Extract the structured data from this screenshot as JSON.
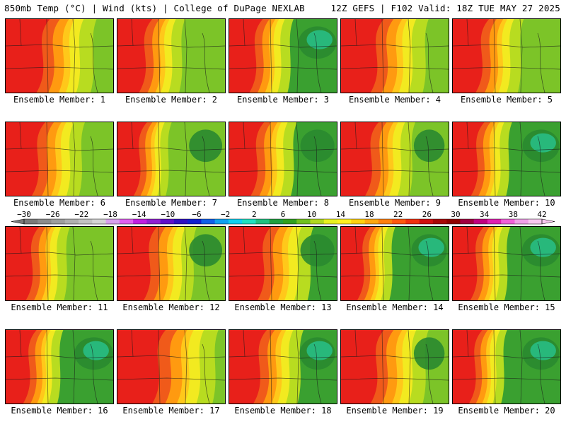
{
  "header": {
    "left": "850mb Temp (°C) | Wind (kts) | College of DuPage NEXLAB",
    "right": "12Z GEFS | F102 Valid: 18Z TUE MAY 27 2025"
  },
  "panel_label_prefix": "Ensemble Member: ",
  "members": [
    {
      "id": "1",
      "warm_extent": 0.52,
      "cool_level": 0.55
    },
    {
      "id": "2",
      "warm_extent": 0.38,
      "cool_level": 0.5
    },
    {
      "id": "3",
      "warm_extent": 0.36,
      "cool_level": 0.8
    },
    {
      "id": "4",
      "warm_extent": 0.5,
      "cool_level": 0.55
    },
    {
      "id": "5",
      "warm_extent": 0.4,
      "cool_level": 0.6
    },
    {
      "id": "6",
      "warm_extent": 0.45,
      "cool_level": 0.45
    },
    {
      "id": "7",
      "warm_extent": 0.3,
      "cool_level": 0.7
    },
    {
      "id": "8",
      "warm_extent": 0.38,
      "cool_level": 0.72
    },
    {
      "id": "9",
      "warm_extent": 0.42,
      "cool_level": 0.65
    },
    {
      "id": "10",
      "warm_extent": 0.33,
      "cool_level": 0.78
    },
    {
      "id": "11",
      "warm_extent": 0.36,
      "cool_level": 0.6
    },
    {
      "id": "12",
      "warm_extent": 0.45,
      "cool_level": 0.7
    },
    {
      "id": "13",
      "warm_extent": 0.48,
      "cool_level": 0.72
    },
    {
      "id": "14",
      "warm_extent": 0.3,
      "cool_level": 0.75
    },
    {
      "id": "15",
      "warm_extent": 0.32,
      "cool_level": 0.8
    },
    {
      "id": "16",
      "warm_extent": 0.32,
      "cool_level": 0.82
    },
    {
      "id": "17",
      "warm_extent": 0.58,
      "cool_level": 0.55
    },
    {
      "id": "18",
      "warm_extent": 0.42,
      "cool_level": 0.75
    },
    {
      "id": "19",
      "warm_extent": 0.5,
      "cool_level": 0.65
    },
    {
      "id": "20",
      "warm_extent": 0.3,
      "cool_level": 0.78
    }
  ],
  "colorbar": {
    "labels": [
      "−30",
      "−26",
      "−22",
      "−18",
      "−14",
      "−10",
      "−6",
      "−2",
      "2",
      "6",
      "10",
      "14",
      "18",
      "22",
      "26",
      "30",
      "34",
      "38",
      "42"
    ],
    "colors": [
      "#7a7a7a",
      "#8c8c8c",
      "#9e9e9e",
      "#b0b0b0",
      "#c2c2c2",
      "#d4d4d4",
      "#d8a0ec",
      "#e060f0",
      "#c020e0",
      "#9020d0",
      "#6010c8",
      "#3010c0",
      "#1020d0",
      "#1060e8",
      "#10a0f0",
      "#10d0f0",
      "#20e0c0",
      "#20c080",
      "#20a040",
      "#30a020",
      "#70c020",
      "#b0d820",
      "#e8f020",
      "#fff020",
      "#ffd010",
      "#ffa810",
      "#ff8010",
      "#ff5810",
      "#f03010",
      "#d01010",
      "#a80808",
      "#900000",
      "#a00040",
      "#c00080",
      "#e020b0",
      "#f060d8",
      "#f0a0e8",
      "#f8c8f0"
    ]
  },
  "palette": {
    "red": "#e8201a",
    "orange_red": "#f05a1a",
    "orange": "#ff9a10",
    "yellow_orange": "#ffc81a",
    "yellow": "#f2ea20",
    "yellow_green": "#b8dc20",
    "green_light": "#7cc428",
    "green": "#3aa030",
    "green_dark": "#2a8a30",
    "teal": "#28c088"
  }
}
